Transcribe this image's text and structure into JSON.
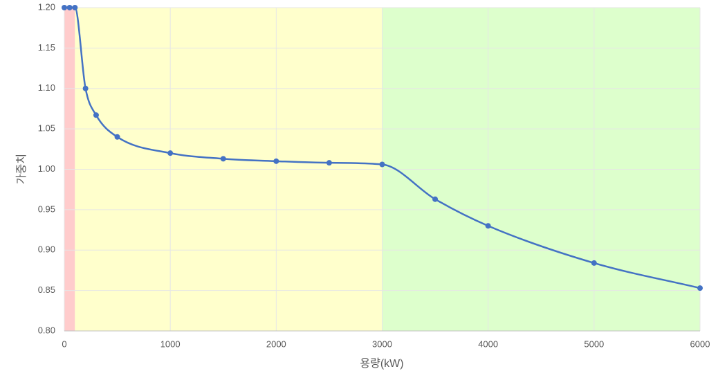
{
  "chart_data": {
    "type": "line",
    "x_label": "용량(kW)",
    "y_label": "가중치",
    "x": [
      0,
      50,
      100,
      200,
      300,
      500,
      1000,
      1500,
      2000,
      2500,
      3000,
      3500,
      4000,
      5000,
      6000
    ],
    "series": [
      {
        "color": "#4472c4",
        "values": [
          1.2,
          1.2,
          1.2,
          1.1,
          1.067,
          1.04,
          1.02,
          1.013,
          1.01,
          1.008,
          1.006,
          0.963,
          0.93,
          0.884,
          0.853
        ]
      }
    ],
    "bands": [
      {
        "from": 0,
        "to": 100,
        "color": "#ffcccc"
      },
      {
        "from": 100,
        "to": 3000,
        "color": "#ffffcc"
      },
      {
        "from": 3000,
        "to": 6000,
        "color": "#ddffcc"
      }
    ],
    "xlim": [
      0,
      6000
    ],
    "xticks": [
      0,
      1000,
      2000,
      3000,
      4000,
      5000,
      6000
    ],
    "ylim": [
      0.8,
      1.2
    ],
    "yticks": [
      {
        "value": 0.8,
        "label": "0.80"
      },
      {
        "value": 0.85,
        "label": "0.85"
      },
      {
        "value": 0.9,
        "label": "0.90"
      },
      {
        "value": 0.95,
        "label": "0.95"
      },
      {
        "value": 1.0,
        "label": "1.00"
      },
      {
        "value": 1.05,
        "label": "1.05"
      },
      {
        "value": 1.1,
        "label": "1.10"
      },
      {
        "value": 1.15,
        "label": "1.15"
      },
      {
        "value": 1.2,
        "label": "1.20"
      }
    ],
    "grid": true
  }
}
